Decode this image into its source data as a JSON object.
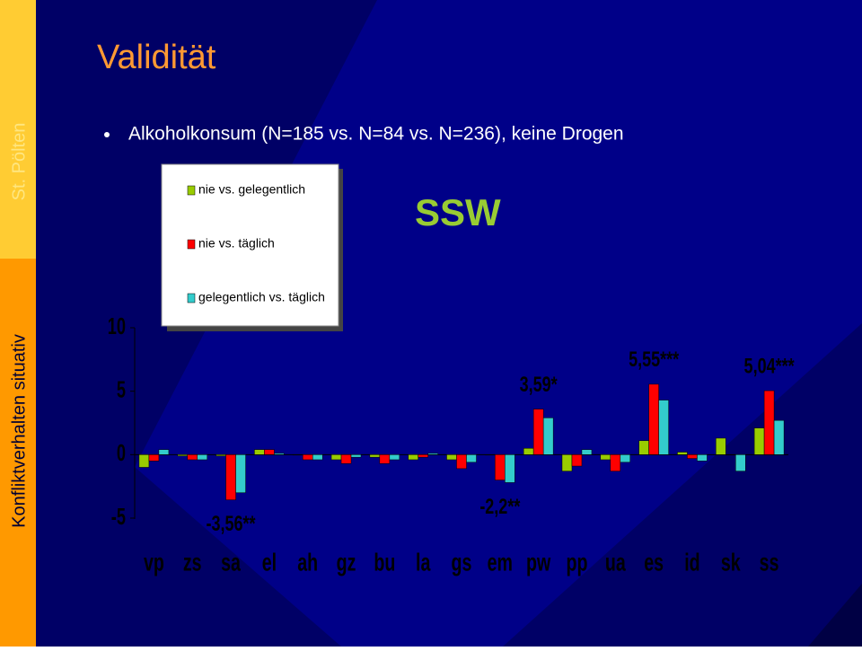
{
  "sidebar": {
    "top": "St. Pölten",
    "bottom": "Konfliktverhalten situativ"
  },
  "title": "Validität",
  "bullet": "Alkoholkonsum (N=185 vs. N=84 vs. N=236), keine Drogen",
  "chart_data": {
    "type": "bar",
    "title": "SSW",
    "categories": [
      "vp",
      "zs",
      "sa",
      "el",
      "ah",
      "gz",
      "bu",
      "la",
      "gs",
      "em",
      "pw",
      "pp",
      "ua",
      "es",
      "id",
      "sk",
      "ss"
    ],
    "series": [
      {
        "name": "nie vs. gelegentlich",
        "color": "#99cc00",
        "values": [
          -1.0,
          -0.1,
          -0.1,
          0.4,
          0,
          -0.4,
          -0.2,
          -0.4,
          -0.4,
          0,
          0.5,
          -1.3,
          -0.4,
          1.1,
          0.2,
          1.3,
          2.1
        ]
      },
      {
        "name": "nie vs. täglich",
        "color": "#ff0000",
        "values": [
          -0.5,
          -0.4,
          -3.56,
          0.4,
          -0.4,
          -0.7,
          -0.7,
          -0.2,
          -1.1,
          -2.0,
          3.59,
          -0.9,
          -1.3,
          5.55,
          -0.3,
          0,
          5.04
        ]
      },
      {
        "name": "gelegentlich vs. täglich",
        "color": "#33cccc",
        "values": [
          0.4,
          -0.4,
          -3.0,
          0.1,
          -0.4,
          -0.2,
          -0.4,
          0.1,
          -0.6,
          -2.2,
          2.9,
          0.4,
          -0.6,
          4.3,
          -0.5,
          -1.3,
          2.7
        ]
      }
    ],
    "ylim": [
      -5,
      10
    ],
    "yticks": [
      10,
      5,
      0,
      -5
    ],
    "annotations": [
      {
        "text": "-3,56**",
        "category": 2
      },
      {
        "text": "-2,2**",
        "category": 9
      },
      {
        "text": "3,59*",
        "category": 10
      },
      {
        "text": "5,55***",
        "category": 13
      },
      {
        "text": "5,04***",
        "category": 16
      }
    ]
  }
}
